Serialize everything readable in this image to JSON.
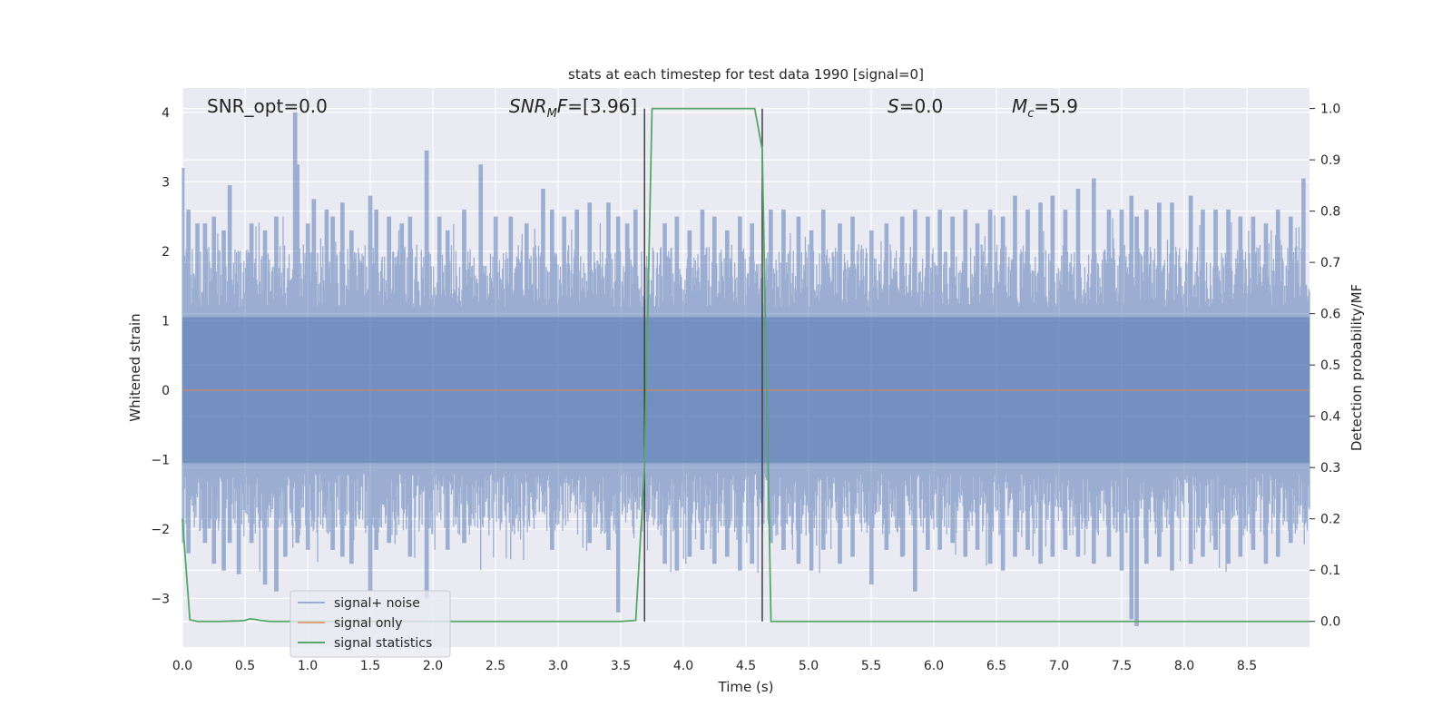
{
  "chart_data": {
    "type": "line",
    "title": "stats at each timestep for test data 1990 [signal=0]",
    "xlabel": "Time (s)",
    "ylabel_left": "Whitened strain",
    "ylabel_right": "Detection probability/MF",
    "xlim": [
      0.0,
      9.0
    ],
    "ylim_left": [
      -3.7,
      4.35
    ],
    "ylim_right": [
      -0.05,
      1.04
    ],
    "xticks": [
      "0.0",
      "0.5",
      "1.0",
      "1.5",
      "2.0",
      "2.5",
      "3.0",
      "3.5",
      "4.0",
      "4.5",
      "5.0",
      "5.5",
      "6.0",
      "6.5",
      "7.0",
      "7.5",
      "8.0",
      "8.5"
    ],
    "yticks_left": [
      {
        "v": 4,
        "t": "4"
      },
      {
        "v": 3,
        "t": "3"
      },
      {
        "v": 2,
        "t": "2"
      },
      {
        "v": 1,
        "t": "1"
      },
      {
        "v": 0,
        "t": "0"
      },
      {
        "v": -1,
        "t": "−1"
      },
      {
        "v": -2,
        "t": "−2"
      },
      {
        "v": -3,
        "t": "−3"
      }
    ],
    "yticks_right": [
      "1.0",
      "0.9",
      "0.8",
      "0.7",
      "0.6",
      "0.5",
      "0.4",
      "0.3",
      "0.2",
      "0.1",
      "0.0"
    ],
    "grid": true,
    "legend_position": "bottom-left",
    "annotations": {
      "snr_opt": "SNR_opt=0.0",
      "snr_mf_prefix": "SNR",
      "snr_mf_sub": "M",
      "snr_mf_mid": "F",
      "snr_mf_value": "=[3.96]",
      "s_symbol": "S",
      "s_value": "=0.0",
      "mc_symbol": "M",
      "mc_sub": "c",
      "mc_value": "=5.9"
    },
    "vlines_x": [
      3.69,
      4.63
    ],
    "series": [
      {
        "name": "signal+ noise",
        "color": "#4c72b0",
        "axis": "left",
        "description_range": [
          -3.4,
          4.0
        ],
        "spikes": [
          [
            0.0,
            3.2,
            -2.2
          ],
          [
            0.05,
            2.6,
            -2.35
          ],
          [
            0.12,
            2.4,
            -2.1
          ],
          [
            0.18,
            2.4,
            -2.2
          ],
          [
            0.25,
            2.5,
            -2.5
          ],
          [
            0.33,
            2.3,
            -2.6
          ],
          [
            0.38,
            2.95,
            -2.2
          ],
          [
            0.45,
            2.1,
            -2.65
          ],
          [
            0.55,
            2.4,
            -2.2
          ],
          [
            0.66,
            2.3,
            -2.8
          ],
          [
            0.75,
            2.5,
            -2.9
          ],
          [
            0.82,
            2.1,
            -2.4
          ],
          [
            0.9,
            4.0,
            -2.0
          ],
          [
            0.92,
            3.25,
            -2.2
          ],
          [
            1.0,
            2.4,
            -2.3
          ],
          [
            1.05,
            2.75,
            -2.0
          ],
          [
            1.15,
            2.6,
            -2.1
          ],
          [
            1.2,
            2.5,
            -2.3
          ],
          [
            1.28,
            2.7,
            -2.4
          ],
          [
            1.35,
            2.3,
            -2.5
          ],
          [
            1.5,
            2.8,
            -2.9
          ],
          [
            1.55,
            2.6,
            -2.3
          ],
          [
            1.65,
            2.5,
            -2.2
          ],
          [
            1.75,
            2.4,
            -2.0
          ],
          [
            1.82,
            2.5,
            -2.4
          ],
          [
            1.95,
            3.45,
            -3.0
          ],
          [
            2.05,
            2.5,
            -2.1
          ],
          [
            2.12,
            2.3,
            -2.3
          ],
          [
            2.25,
            2.6,
            -2.2
          ],
          [
            2.38,
            3.25,
            -2.0
          ],
          [
            2.5,
            2.5,
            -2.1
          ],
          [
            2.62,
            2.5,
            -1.9
          ],
          [
            2.75,
            2.4,
            -2.0
          ],
          [
            2.88,
            2.9,
            -2.1
          ],
          [
            2.95,
            2.6,
            -2.3
          ],
          [
            3.05,
            2.5,
            -2.1
          ],
          [
            3.15,
            2.6,
            -2.0
          ],
          [
            3.25,
            2.7,
            -2.2
          ],
          [
            3.4,
            2.7,
            -2.3
          ],
          [
            3.48,
            2.5,
            -3.2
          ],
          [
            3.55,
            2.4,
            -2.1
          ],
          [
            3.62,
            2.6,
            -2.0
          ],
          [
            3.85,
            2.4,
            -2.5
          ],
          [
            3.95,
            2.5,
            -2.6
          ],
          [
            4.05,
            2.3,
            -2.4
          ],
          [
            4.15,
            2.6,
            -2.3
          ],
          [
            4.25,
            2.5,
            -2.5
          ],
          [
            4.35,
            2.3,
            -2.4
          ],
          [
            4.45,
            2.5,
            -2.6
          ],
          [
            4.55,
            2.4,
            -2.5
          ],
          [
            4.7,
            2.6,
            -2.2
          ],
          [
            4.8,
            2.6,
            -2.3
          ],
          [
            4.92,
            2.5,
            -2.5
          ],
          [
            5.02,
            2.3,
            -2.6
          ],
          [
            5.12,
            2.6,
            -2.3
          ],
          [
            5.25,
            2.4,
            -2.5
          ],
          [
            5.35,
            2.5,
            -2.4
          ],
          [
            5.5,
            2.3,
            -2.8
          ],
          [
            5.62,
            2.4,
            -2.3
          ],
          [
            5.75,
            2.5,
            -2.4
          ],
          [
            5.85,
            2.6,
            -2.9
          ],
          [
            5.95,
            2.5,
            -2.3
          ],
          [
            6.05,
            2.6,
            -2.3
          ],
          [
            6.15,
            2.5,
            -2.2
          ],
          [
            6.25,
            2.6,
            -2.4
          ],
          [
            6.35,
            2.4,
            -2.3
          ],
          [
            6.45,
            2.6,
            -2.5
          ],
          [
            6.55,
            2.5,
            -2.6
          ],
          [
            6.65,
            2.8,
            -2.4
          ],
          [
            6.75,
            2.6,
            -2.3
          ],
          [
            6.85,
            2.7,
            -2.5
          ],
          [
            6.95,
            2.8,
            -2.4
          ],
          [
            7.05,
            2.6,
            -2.3
          ],
          [
            7.15,
            2.9,
            -2.4
          ],
          [
            7.28,
            3.05,
            -2.5
          ],
          [
            7.4,
            2.6,
            -2.4
          ],
          [
            7.5,
            2.6,
            -2.6
          ],
          [
            7.58,
            2.8,
            -3.3
          ],
          [
            7.62,
            2.5,
            -3.4
          ],
          [
            7.7,
            2.6,
            -2.5
          ],
          [
            7.8,
            2.7,
            -2.4
          ],
          [
            7.9,
            2.7,
            -2.6
          ],
          [
            8.05,
            2.8,
            -2.5
          ],
          [
            8.15,
            2.6,
            -2.4
          ],
          [
            8.25,
            2.6,
            -2.3
          ],
          [
            8.35,
            2.6,
            -2.5
          ],
          [
            8.45,
            2.5,
            -2.4
          ],
          [
            8.55,
            2.5,
            -2.3
          ],
          [
            8.65,
            2.4,
            -2.5
          ],
          [
            8.75,
            2.6,
            -2.4
          ],
          [
            8.85,
            2.5,
            -2.2
          ],
          [
            8.95,
            3.05,
            -2.1
          ]
        ]
      },
      {
        "name": "signal only",
        "color": "#dd8452",
        "axis": "left",
        "x": [
          0.0,
          9.0
        ],
        "y": [
          0.0,
          0.0
        ]
      },
      {
        "name": "signal statistics",
        "color": "#55a868",
        "axis": "right",
        "x": [
          0.0,
          0.06,
          0.12,
          0.2,
          0.3,
          0.45,
          0.5,
          0.54,
          0.58,
          0.62,
          0.7,
          0.8,
          1.0,
          3.5,
          3.62,
          3.69,
          3.75,
          4.0,
          4.5,
          4.57,
          4.63,
          4.7,
          4.8,
          5.0,
          9.0
        ],
        "y": [
          0.2,
          0.003,
          0.0,
          0.0,
          0.0,
          0.001,
          0.002,
          0.005,
          0.004,
          0.002,
          0.0,
          0.0,
          0.0,
          0.0,
          0.002,
          0.3,
          1.0,
          1.0,
          1.0,
          1.0,
          0.92,
          0.0,
          0.0,
          0.0,
          0.0
        ]
      }
    ]
  }
}
